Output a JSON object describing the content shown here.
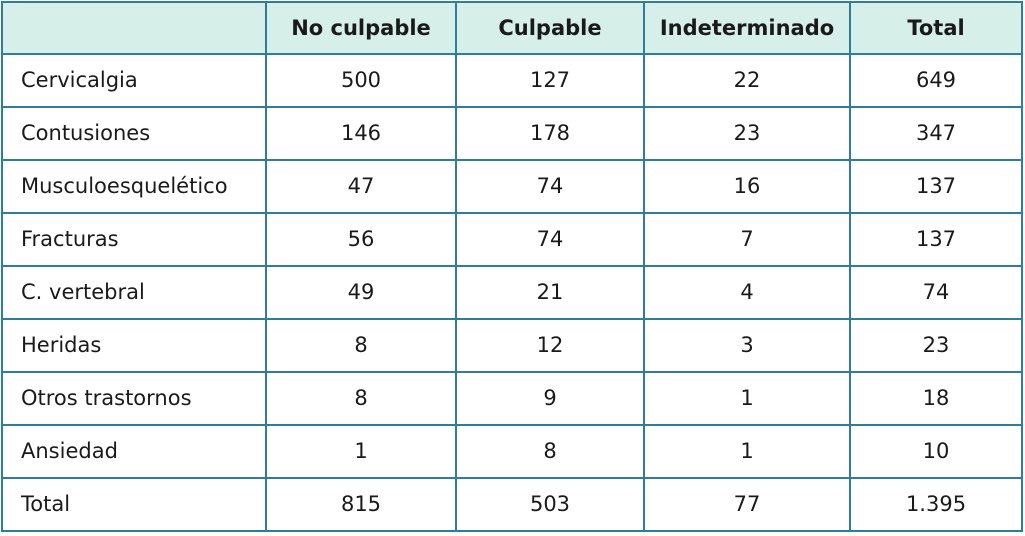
{
  "table": {
    "headers": [
      "",
      "No culpable",
      "Culpable",
      "Indeterminado",
      "Total"
    ],
    "rows": [
      {
        "label": "Cervicalgia",
        "no_culpable": "500",
        "culpable": "127",
        "indeterminado": "22",
        "total": "649"
      },
      {
        "label": "Contusiones",
        "no_culpable": "146",
        "culpable": "178",
        "indeterminado": "23",
        "total": "347"
      },
      {
        "label": "Musculoesquelético",
        "no_culpable": "47",
        "culpable": "74",
        "indeterminado": "16",
        "total": "137"
      },
      {
        "label": "Fracturas",
        "no_culpable": "56",
        "culpable": "74",
        "indeterminado": "7",
        "total": "137"
      },
      {
        "label": "C. vertebral",
        "no_culpable": "49",
        "culpable": "21",
        "indeterminado": "4",
        "total": "74"
      },
      {
        "label": "Heridas",
        "no_culpable": "8",
        "culpable": "12",
        "indeterminado": "3",
        "total": "23"
      },
      {
        "label": "Otros trastornos",
        "no_culpable": "8",
        "culpable": "9",
        "indeterminado": "1",
        "total": "18"
      },
      {
        "label": "Ansiedad",
        "no_culpable": "1",
        "culpable": "8",
        "indeterminado": "1",
        "total": "10"
      },
      {
        "label": "Total",
        "no_culpable": "815",
        "culpable": "503",
        "indeterminado": "77",
        "total": "1.395"
      }
    ]
  },
  "colors": {
    "header_background": "#d6efe8",
    "border": "#2e7d9a"
  }
}
